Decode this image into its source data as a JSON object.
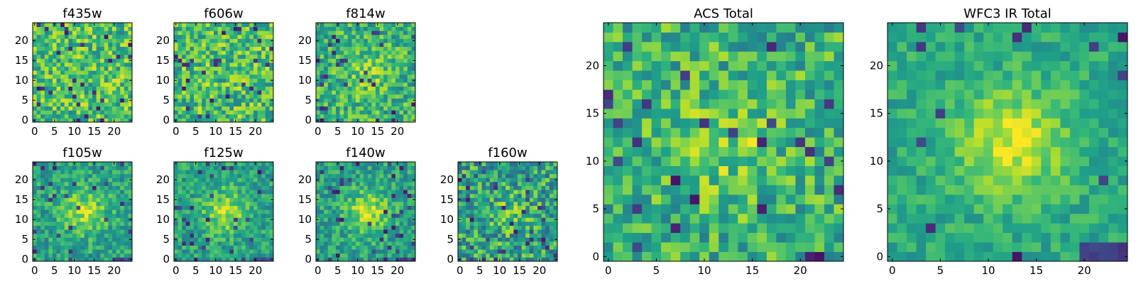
{
  "chart_data": [
    {
      "type": "heatmap",
      "title": "f435w",
      "grid_size": 25,
      "xticks": [
        0,
        5,
        10,
        15,
        20
      ],
      "yticks": [
        0,
        5,
        10,
        15,
        20
      ],
      "xlim": [
        -0.5,
        24.5
      ],
      "ylim": [
        -0.5,
        24.5
      ],
      "colormap": "viridis",
      "value_range": [
        0,
        1
      ],
      "pattern": "uniform noise",
      "seed": 11
    },
    {
      "type": "heatmap",
      "title": "f606w",
      "grid_size": 25,
      "xticks": [
        0,
        5,
        10,
        15,
        20
      ],
      "yticks": [
        0,
        5,
        10,
        15,
        20
      ],
      "xlim": [
        -0.5,
        24.5
      ],
      "ylim": [
        -0.5,
        24.5
      ],
      "colormap": "viridis",
      "value_range": [
        0,
        1
      ],
      "pattern": "uniform noise",
      "seed": 23
    },
    {
      "type": "heatmap",
      "title": "f814w",
      "grid_size": 25,
      "xticks": [
        0,
        5,
        10,
        15,
        20
      ],
      "yticks": [
        0,
        5,
        10,
        15,
        20
      ],
      "xlim": [
        -0.5,
        24.5
      ],
      "ylim": [
        -0.5,
        24.5
      ],
      "colormap": "viridis",
      "value_range": [
        0,
        1
      ],
      "pattern": "noise with faint central source",
      "seed": 37
    },
    {
      "type": "heatmap",
      "title": "f105w",
      "grid_size": 25,
      "xticks": [
        0,
        5,
        10,
        15,
        20
      ],
      "yticks": [
        0,
        5,
        10,
        15,
        20
      ],
      "xlim": [
        -0.5,
        24.5
      ],
      "ylim": [
        -0.5,
        24.5
      ],
      "colormap": "viridis",
      "value_range": [
        0,
        1
      ],
      "pattern": "central source near (13, 12)",
      "seed": 41
    },
    {
      "type": "heatmap",
      "title": "f125w",
      "grid_size": 25,
      "xticks": [
        0,
        5,
        10,
        15,
        20
      ],
      "yticks": [
        0,
        5,
        10,
        15,
        20
      ],
      "xlim": [
        -0.5,
        24.5
      ],
      "ylim": [
        -0.5,
        24.5
      ],
      "colormap": "viridis",
      "value_range": [
        0,
        1
      ],
      "pattern": "central source near (12, 12)",
      "seed": 53
    },
    {
      "type": "heatmap",
      "title": "f140w",
      "grid_size": 25,
      "xticks": [
        0,
        5,
        10,
        15,
        20
      ],
      "yticks": [
        0,
        5,
        10,
        15,
        20
      ],
      "xlim": [
        -0.5,
        24.5
      ],
      "ylim": [
        -0.5,
        24.5
      ],
      "colormap": "viridis",
      "value_range": [
        0,
        1
      ],
      "pattern": "central source near (12, 11)",
      "seed": 67
    },
    {
      "type": "heatmap",
      "title": "f160w",
      "grid_size": 25,
      "xticks": [
        0,
        5,
        10,
        15,
        20
      ],
      "yticks": [
        0,
        5,
        10,
        15,
        20
      ],
      "xlim": [
        -0.5,
        24.5
      ],
      "ylim": [
        -0.5,
        24.5
      ],
      "colormap": "viridis",
      "value_range": [
        0,
        1
      ],
      "pattern": "noisy with faint central source",
      "seed": 79
    },
    {
      "type": "heatmap",
      "title": "ACS Total",
      "grid_size": 25,
      "xticks": [
        0,
        5,
        10,
        15,
        20
      ],
      "yticks": [
        0,
        5,
        10,
        15,
        20
      ],
      "xlim": [
        -0.5,
        24.5
      ],
      "ylim": [
        -0.5,
        24.5
      ],
      "colormap": "viridis",
      "value_range": [
        0,
        1
      ],
      "pattern": "noise with faint central source",
      "seed": 83
    },
    {
      "type": "heatmap",
      "title": "WFC3 IR Total",
      "grid_size": 25,
      "xticks": [
        0,
        5,
        10,
        15,
        20
      ],
      "yticks": [
        0,
        5,
        10,
        15,
        20
      ],
      "xlim": [
        -0.5,
        24.5
      ],
      "ylim": [
        -0.5,
        24.5
      ],
      "colormap": "viridis",
      "value_range": [
        0,
        1
      ],
      "pattern": "bright central source near (13, 12)",
      "seed": 97
    }
  ]
}
